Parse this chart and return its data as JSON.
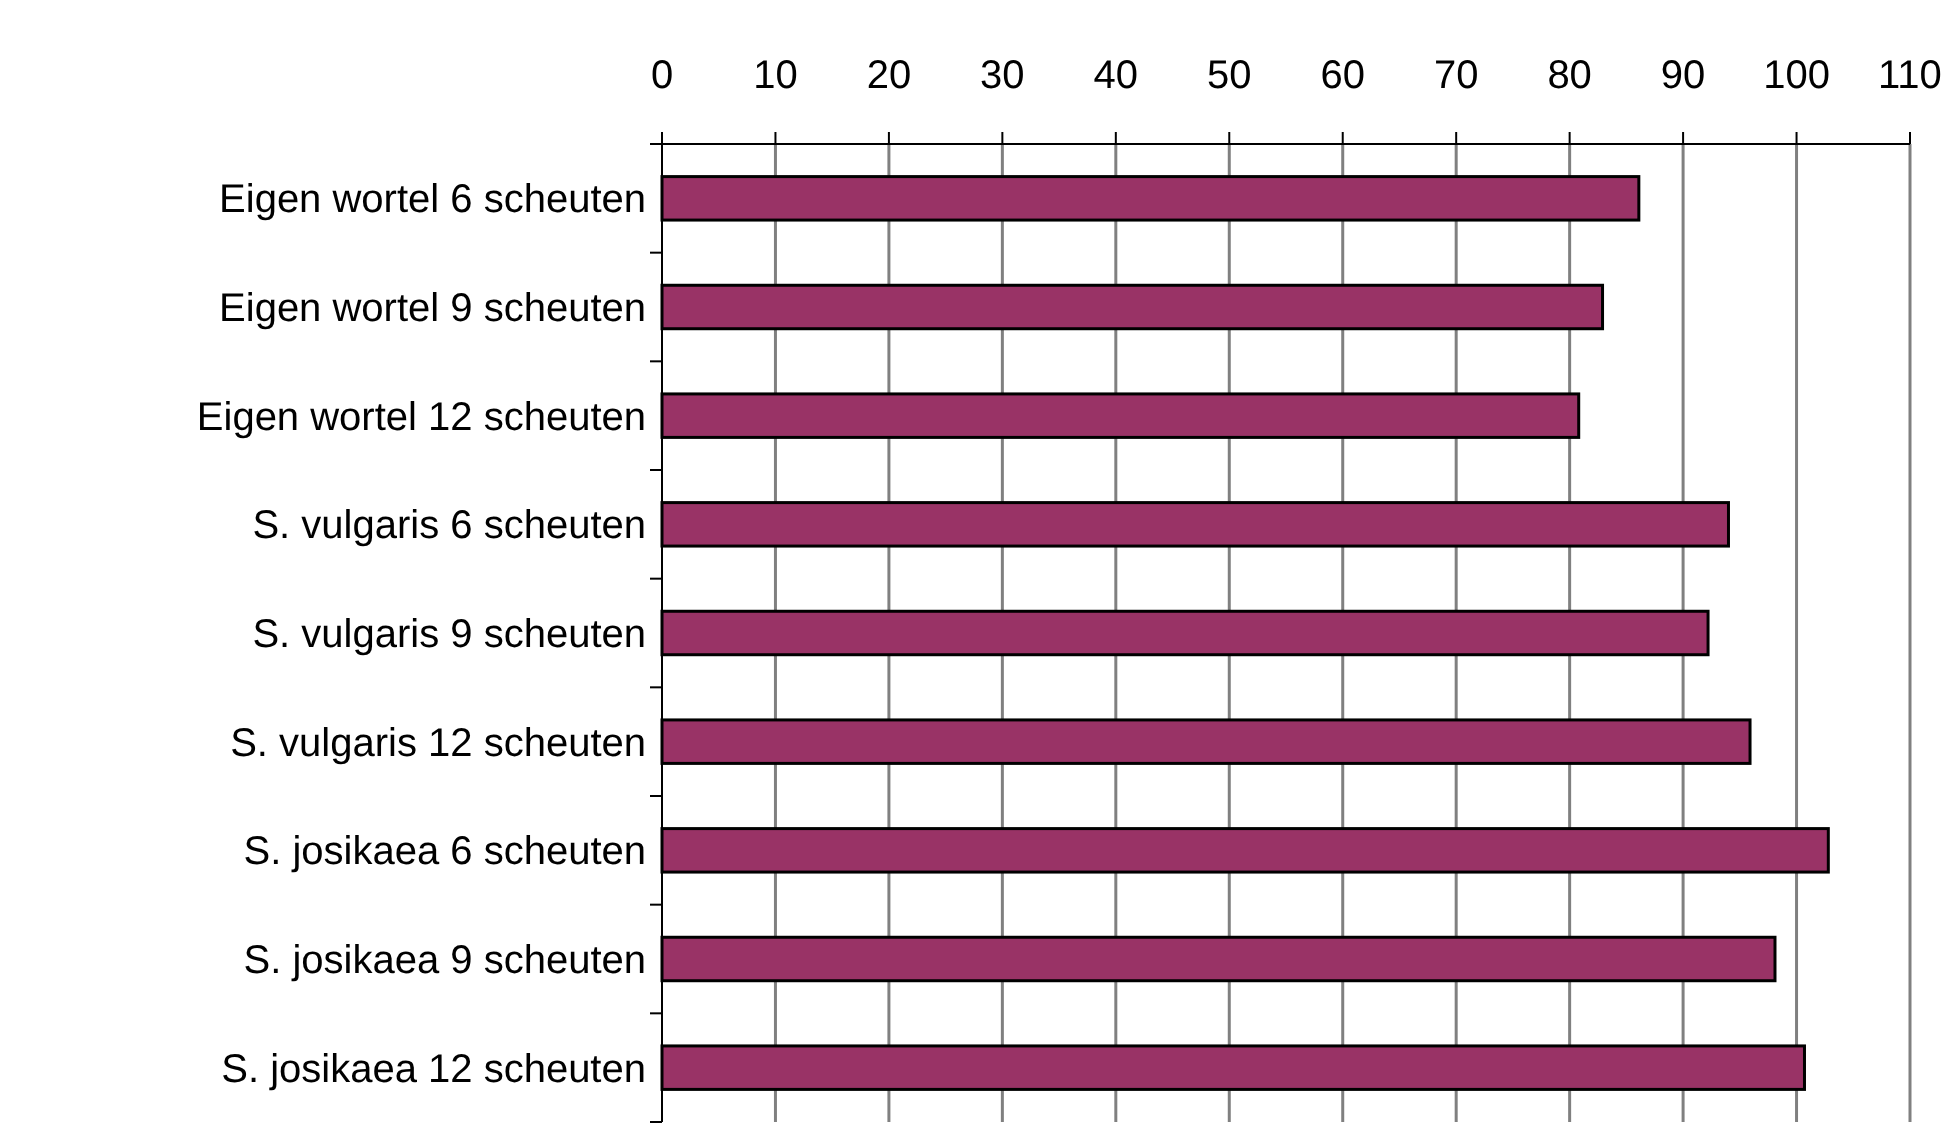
{
  "chart_data": {
    "type": "bar",
    "orientation": "horizontal",
    "categories": [
      "Eigen wortel 6 scheuten",
      "Eigen wortel 9 scheuten",
      "Eigen wortel 12 scheuten",
      "S. vulgaris 6 scheuten",
      "S. vulgaris 9 scheuten",
      "S. vulgaris 12 scheuten",
      "S. josikaea 6 scheuten",
      "S. josikaea 9 scheuten",
      "S. josikaea 12 scheuten"
    ],
    "values": [
      86.1,
      82.9,
      80.8,
      94.0,
      92.2,
      95.9,
      102.8,
      98.1,
      100.7
    ],
    "color": "#993366",
    "xlim": [
      0,
      110
    ],
    "xticks": [
      0,
      10,
      20,
      30,
      40,
      50,
      60,
      70,
      80,
      90,
      100,
      110
    ],
    "grid": "x"
  }
}
